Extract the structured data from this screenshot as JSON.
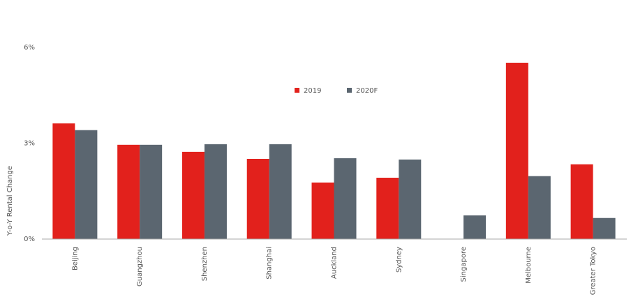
{
  "chart_data": {
    "type": "bar",
    "y_label": "Y-o-Y Rental Change",
    "categories": [
      "Beijing",
      "Guangzhou",
      "Shenzhen",
      "Shanghai",
      "Auckland",
      "Sydney",
      "Singapore",
      "Melbourne",
      "Greater Tokyo"
    ],
    "series": [
      {
        "name": "2019",
        "color": "#e2211c",
        "values": [
          3.62,
          2.95,
          2.73,
          2.51,
          1.77,
          1.92,
          null,
          5.52,
          2.34
        ]
      },
      {
        "name": "2020F",
        "color": "#5b6670",
        "values": [
          3.41,
          2.95,
          2.97,
          2.97,
          2.53,
          2.49,
          0.74,
          1.97,
          0.66
        ]
      }
    ],
    "ylim": [
      0,
      6
    ],
    "yticks": [
      {
        "value": 0,
        "label": "0%"
      },
      {
        "value": 3,
        "label": "3%"
      },
      {
        "value": 6,
        "label": "6%"
      }
    ],
    "grid": false
  }
}
